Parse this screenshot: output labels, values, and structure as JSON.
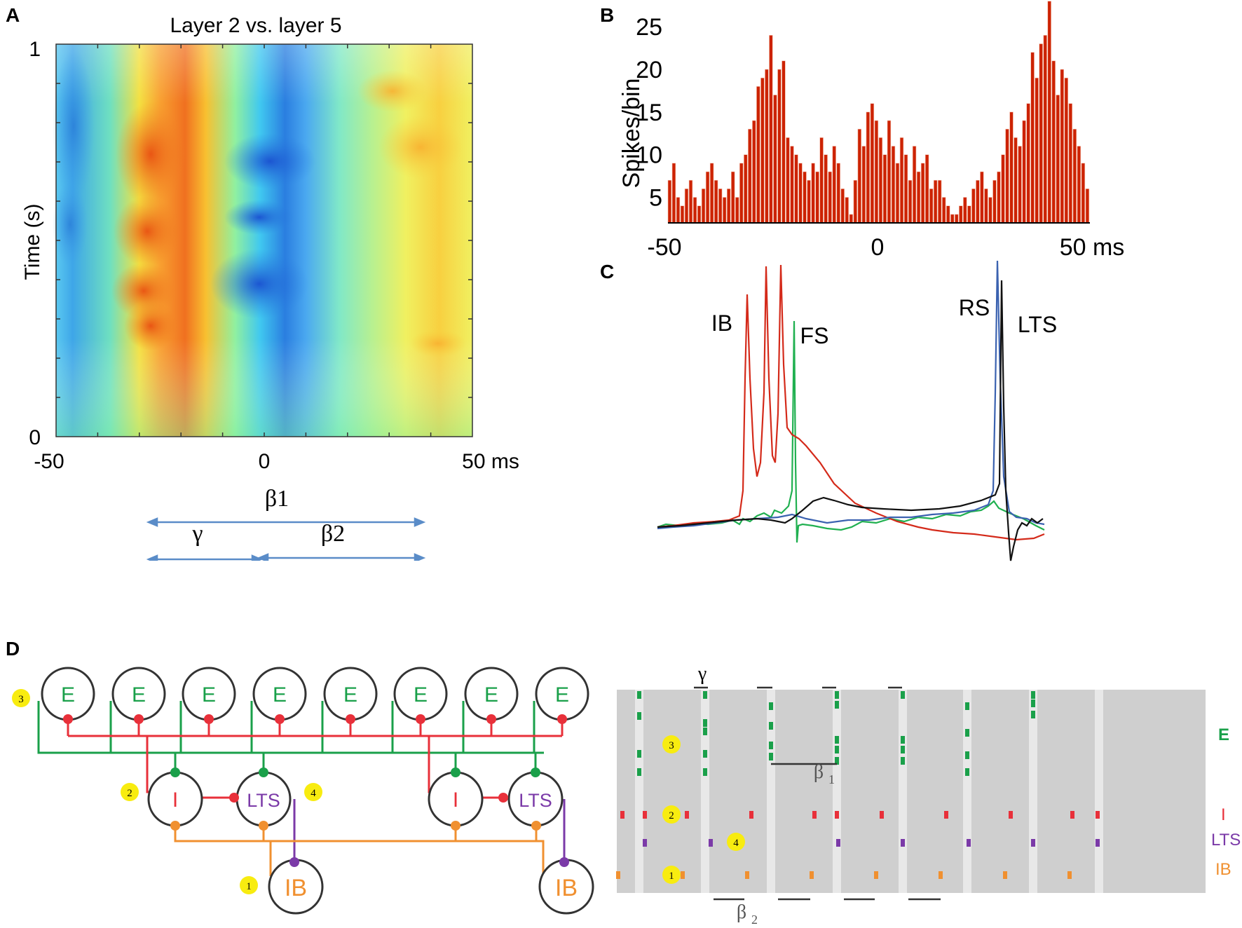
{
  "panels": {
    "a": "A",
    "b": "B",
    "c": "C",
    "d": "D"
  },
  "panel_a": {
    "title": "Layer 2 vs. layer 5",
    "ylabel": "Time (s)",
    "y_ticks": [
      "1",
      "0"
    ],
    "x_ticks": [
      "-50",
      "0",
      "50 ms"
    ],
    "beta1": "β1",
    "gamma": "γ",
    "beta2": "β2"
  },
  "panel_b": {
    "ylabel": "Spikes/bin",
    "y_ticks": [
      "25",
      "20",
      "15",
      "10",
      "5"
    ],
    "x_ticks": [
      "-50",
      "0",
      "50 ms"
    ],
    "bar_color": "#cc2200"
  },
  "panel_c": {
    "labels": {
      "ib": "IB",
      "fs": "FS",
      "rs": "RS",
      "lts": "LTS"
    },
    "colors": {
      "ib": "#d42a1a",
      "fs": "#20b050",
      "rs": "#3b62b0",
      "lts": "#111111"
    }
  },
  "panel_d_left": {
    "e_label": "E",
    "i_label": "I",
    "lts_label": "LTS",
    "ib_label": "IB",
    "badges": [
      "3",
      "2",
      "4",
      "1"
    ],
    "colors": {
      "e": "#1aa04a",
      "i": "#e8303a",
      "lts": "#7b3aa8",
      "ib": "#f09030"
    }
  },
  "panel_d_right": {
    "gamma": "γ",
    "beta1": "β",
    "beta1_sub": "1",
    "beta2": "β",
    "beta2_sub": "2",
    "row_labels": [
      "E",
      "I",
      "LTS",
      "IB"
    ],
    "badges": [
      "3",
      "2",
      "4",
      "1"
    ]
  },
  "chart_data": [
    {
      "type": "heatmap",
      "title": "Layer 2 vs. layer 5",
      "xlabel": "",
      "ylabel": "Time (s)",
      "xlim": [
        -50,
        50
      ],
      "ylim": [
        0,
        1
      ],
      "x_ticks": [
        -50,
        0,
        50
      ],
      "y_ticks": [
        0,
        1
      ],
      "features": [
        {
          "center_ms": -27,
          "kind": "high",
          "desc": "orange ridge"
        },
        {
          "center_ms": -2,
          "kind": "low",
          "desc": "blue trough"
        },
        {
          "center_ms": 40,
          "kind": "high",
          "desc": "yellow"
        }
      ]
    },
    {
      "type": "bar",
      "title": "",
      "xlabel": "",
      "ylabel": "Spikes/bin",
      "xlim": [
        -50,
        50
      ],
      "ylim": [
        2,
        26
      ],
      "x_ticks": [
        -50,
        0,
        50
      ],
      "y_ticks": [
        5,
        10,
        15,
        20,
        25
      ],
      "x": [
        -49.5,
        -48.5,
        -47.5,
        -46.5,
        -45.5,
        -44.5,
        -43.5,
        -42.5,
        -41.5,
        -40.5,
        -39.5,
        -38.5,
        -37.5,
        -36.5,
        -35.5,
        -34.5,
        -33.5,
        -32.5,
        -31.5,
        -30.5,
        -29.5,
        -28.5,
        -27.5,
        -26.5,
        -25.5,
        -24.5,
        -23.5,
        -22.5,
        -21.5,
        -20.5,
        -19.5,
        -18.5,
        -17.5,
        -16.5,
        -15.5,
        -14.5,
        -13.5,
        -12.5,
        -11.5,
        -10.5,
        -9.5,
        -8.5,
        -7.5,
        -6.5,
        -5.5,
        -4.5,
        -3.5,
        -2.5,
        -1.5,
        -0.5,
        0.5,
        1.5,
        2.5,
        3.5,
        4.5,
        5.5,
        6.5,
        7.5,
        8.5,
        9.5,
        10.5,
        11.5,
        12.5,
        13.5,
        14.5,
        15.5,
        16.5,
        17.5,
        18.5,
        19.5,
        20.5,
        21.5,
        22.5,
        23.5,
        24.5,
        25.5,
        26.5,
        27.5,
        28.5,
        29.5,
        30.5,
        31.5,
        32.5,
        33.5,
        34.5,
        35.5,
        36.5,
        37.5,
        38.5,
        39.5,
        40.5,
        41.5,
        42.5,
        43.5,
        44.5,
        45.5,
        46.5,
        47.5,
        48.5,
        49.5
      ],
      "values": [
        7,
        9,
        5,
        4,
        6,
        7,
        5,
        4,
        6,
        8,
        9,
        7,
        6,
        5,
        6,
        8,
        5,
        9,
        10,
        13,
        14,
        18,
        19,
        20,
        24,
        17,
        20,
        21,
        12,
        11,
        10,
        9,
        8,
        7,
        9,
        8,
        12,
        10,
        8,
        11,
        9,
        6,
        5,
        3,
        7,
        13,
        11,
        15,
        16,
        14,
        12,
        10,
        14,
        11,
        9,
        12,
        10,
        7,
        11,
        8,
        9,
        10,
        6,
        7,
        7,
        5,
        4,
        3,
        3,
        4,
        5,
        4,
        6,
        7,
        8,
        6,
        5,
        7,
        8,
        10,
        13,
        15,
        12,
        11,
        14,
        16,
        22,
        19,
        23,
        24,
        28,
        21,
        17,
        20,
        19,
        16,
        13,
        11,
        9,
        6
      ]
    }
  ]
}
